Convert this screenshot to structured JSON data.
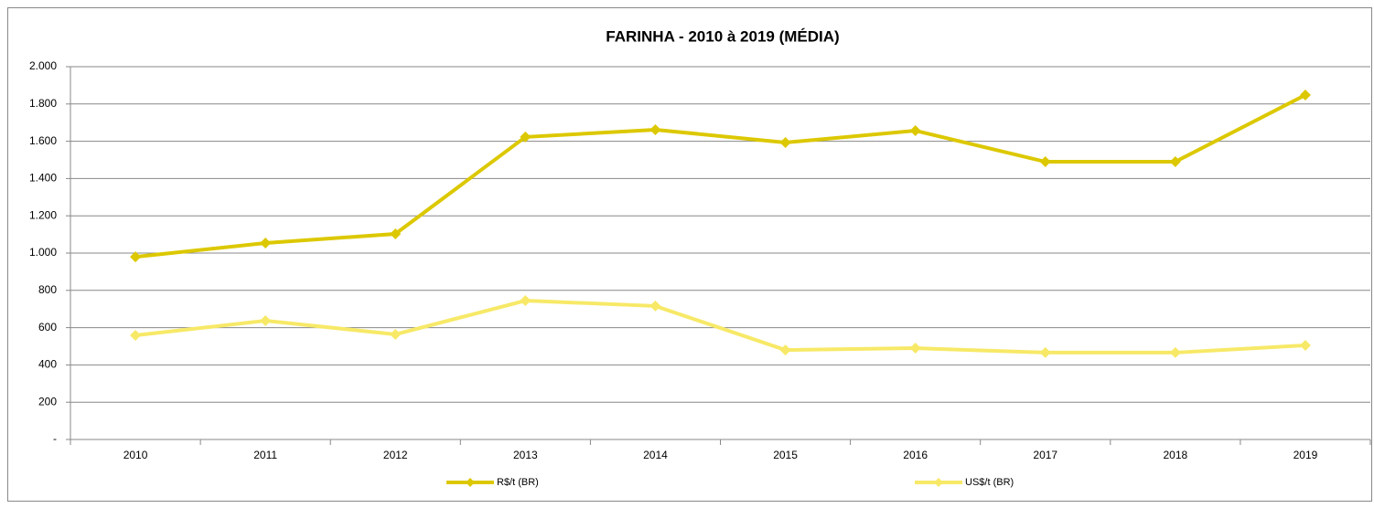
{
  "chart_data": {
    "type": "line",
    "title": "FARINHA - 2010 à 2019 (MÉDIA)",
    "categories": [
      "2010",
      "2011",
      "2012",
      "2013",
      "2014",
      "2015",
      "2016",
      "2017",
      "2018",
      "2019"
    ],
    "series": [
      {
        "name": "R$/t (BR)",
        "color": "#dcc800",
        "values": [
          980,
          1054,
          1103,
          1623,
          1662,
          1593,
          1657,
          1490,
          1490,
          1848
        ]
      },
      {
        "name": "US$/t (BR)",
        "color": "#f7e967",
        "values": [
          559,
          637,
          564,
          745,
          716,
          480,
          490,
          466,
          466,
          505
        ]
      }
    ],
    "ylim": [
      0,
      2000
    ],
    "yticks": [
      {
        "value": 0,
        "label": "-"
      },
      200,
      400,
      600,
      800,
      {
        "value": 1000,
        "label": "1.000"
      },
      {
        "value": 1200,
        "label": "1.200"
      },
      {
        "value": 1400,
        "label": "1.400"
      },
      {
        "value": 1600,
        "label": "1.600"
      },
      {
        "value": 1800,
        "label": "1.800"
      },
      {
        "value": 2000,
        "label": "2.000"
      }
    ],
    "grid": true,
    "legend": "bottom"
  }
}
